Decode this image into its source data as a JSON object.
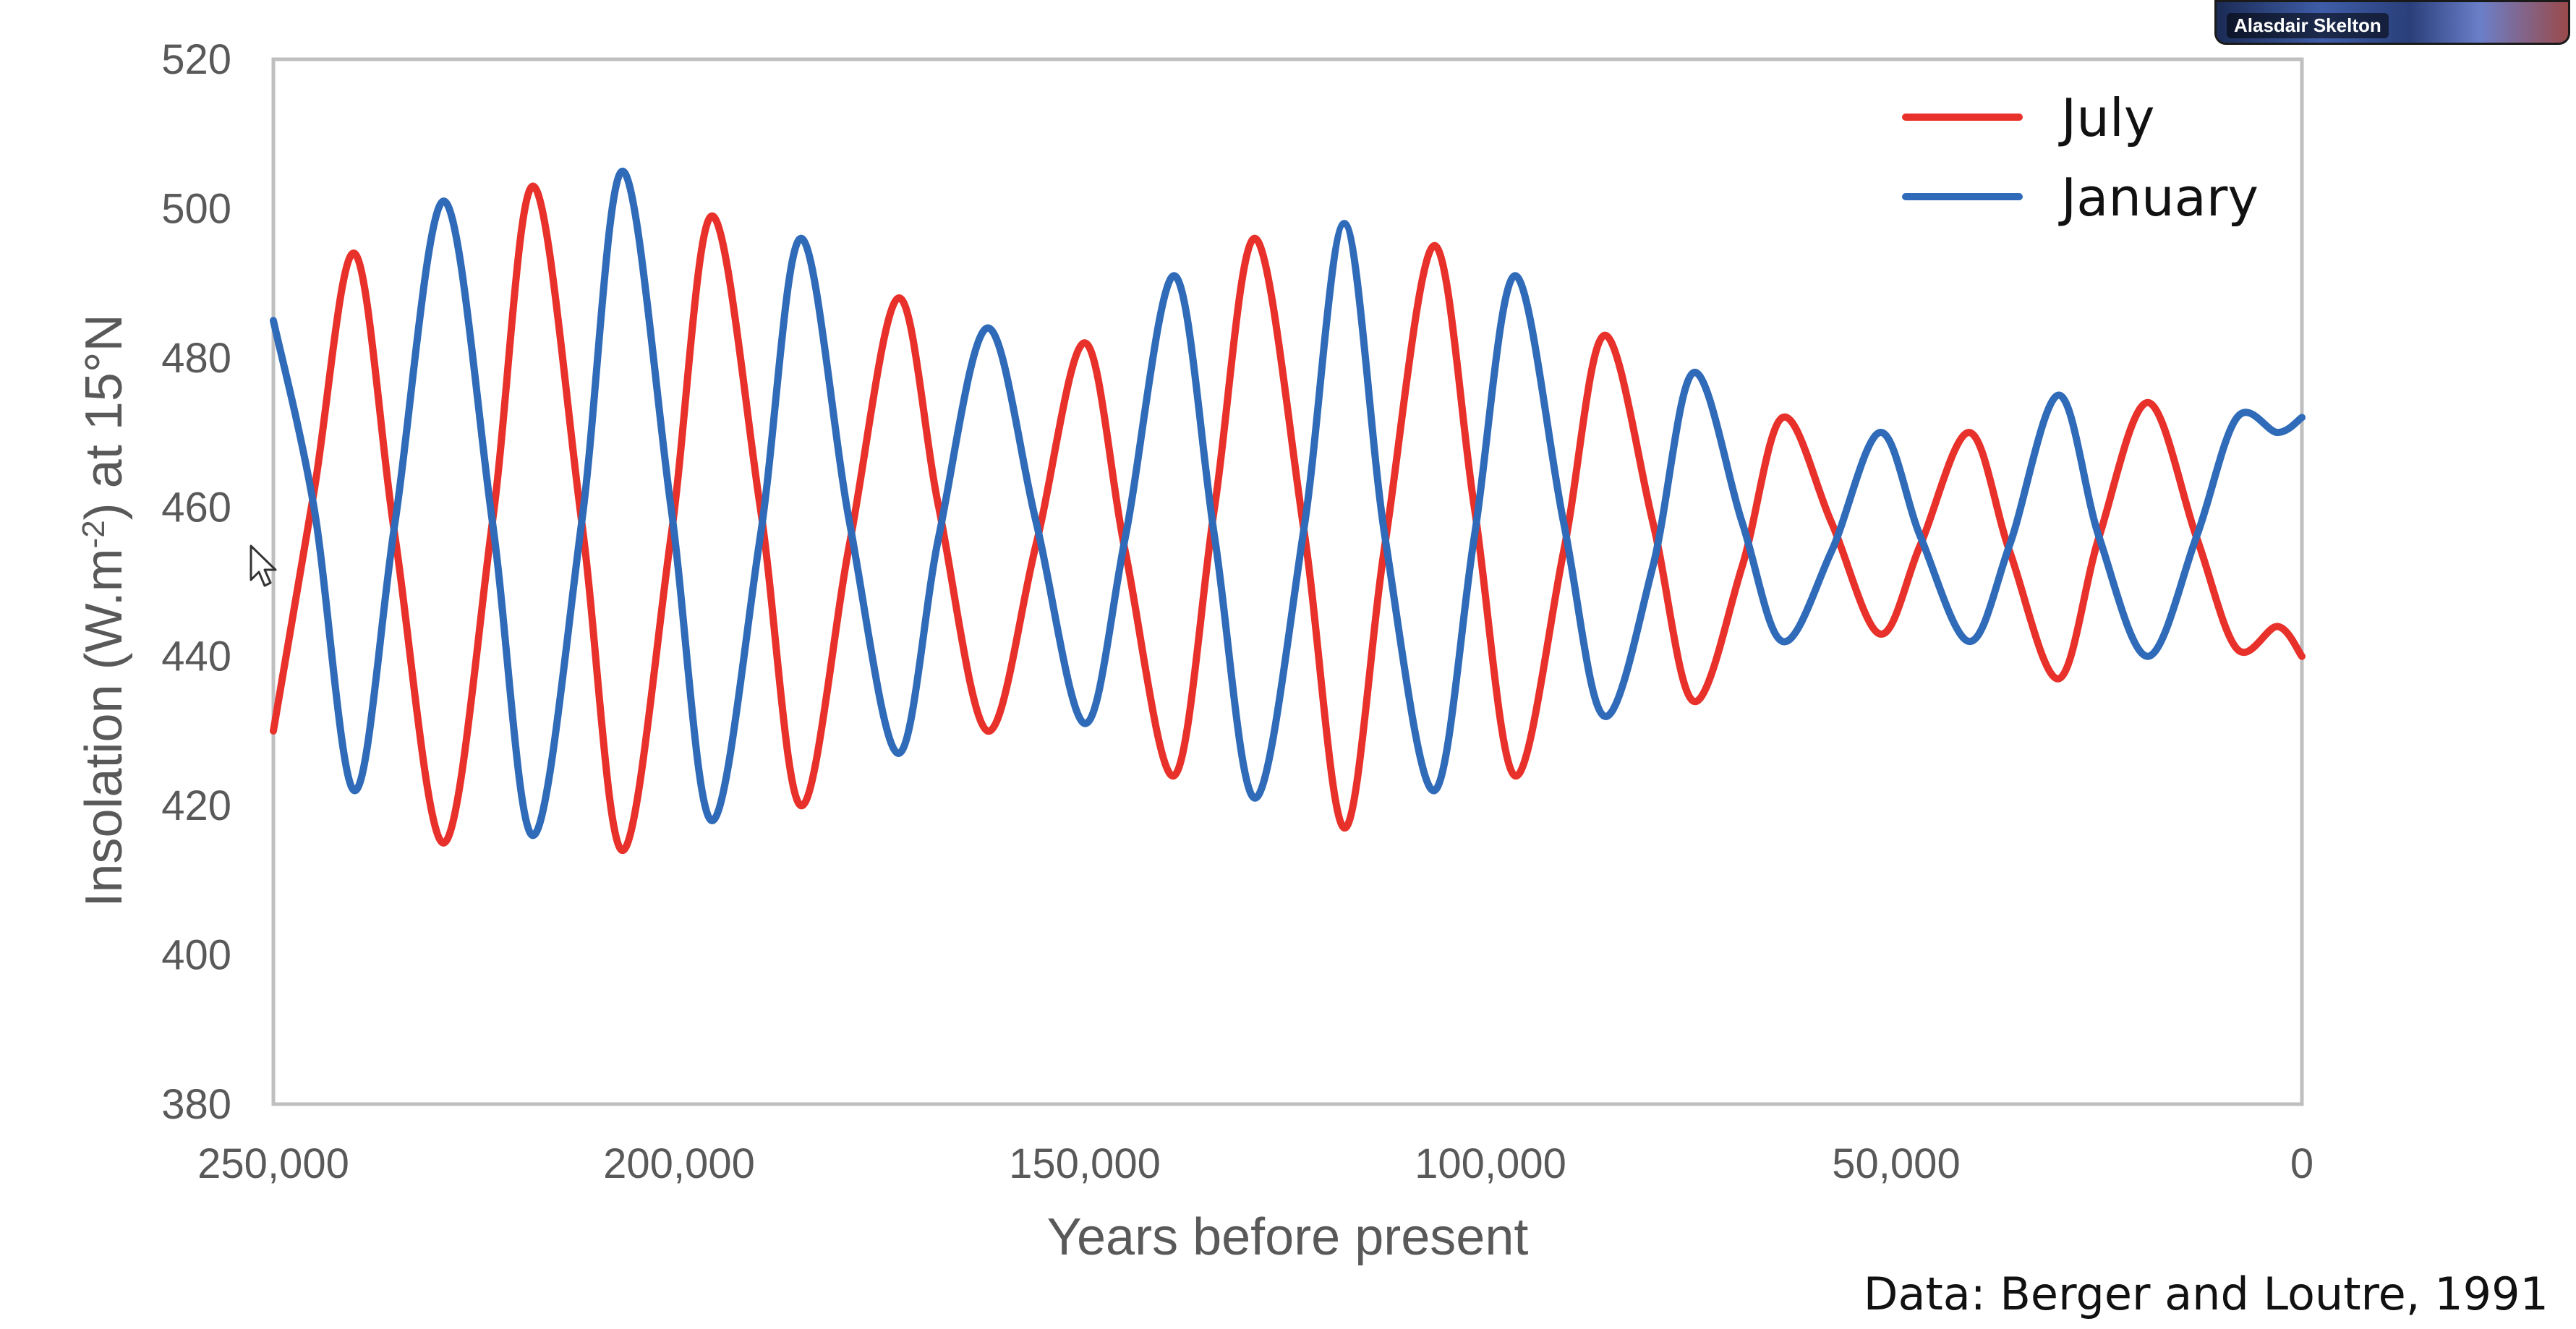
{
  "chart_data": {
    "type": "line",
    "xlabel": "Years before present",
    "ylabel_main": "Insolation (W.m",
    "ylabel_sup": "-2",
    "ylabel_tail": ") at 15°N",
    "xlim": [
      250000,
      0
    ],
    "ylim": [
      380,
      520
    ],
    "x_ticks": [
      250000,
      200000,
      150000,
      100000,
      50000,
      0
    ],
    "x_tick_labels": [
      "250,000",
      "200,000",
      "150,000",
      "100,000",
      "50,000",
      "0"
    ],
    "y_ticks": [
      380,
      400,
      420,
      440,
      460,
      480,
      500,
      520
    ],
    "y_tick_labels": [
      "380",
      "400",
      "420",
      "440",
      "460",
      "480",
      "500",
      "520"
    ],
    "grid": false,
    "legend_position": "top-right",
    "series": [
      {
        "name": "July",
        "color": "#e8312a",
        "x": [
          250000,
          245000,
          240000,
          235000,
          229000,
          223000,
          218000,
          212000,
          207000,
          201000,
          196000,
          190000,
          185000,
          179000,
          173000,
          168000,
          162000,
          156000,
          150000,
          145000,
          139000,
          134000,
          129000,
          123000,
          118000,
          113000,
          107000,
          102000,
          97000,
          91000,
          86000,
          80000,
          75000,
          69000,
          64000,
          58000,
          52000,
          47000,
          41000,
          36000,
          30000,
          25000,
          19000,
          13000,
          8000,
          3000,
          0
        ],
        "y": [
          430,
          462,
          494,
          456,
          415,
          458,
          503,
          458,
          414,
          456,
          499,
          460,
          420,
          455,
          488,
          460,
          430,
          455,
          482,
          454,
          424,
          460,
          496,
          457,
          417,
          455,
          495,
          460,
          424,
          454,
          483,
          458,
          434,
          452,
          472,
          458,
          443,
          455,
          470,
          454,
          437,
          456,
          474,
          456,
          441,
          444,
          440
        ]
      },
      {
        "name": "January",
        "color": "#2f6bb8",
        "x": [
          250000,
          245000,
          240000,
          235000,
          229000,
          223000,
          218000,
          212000,
          207000,
          201000,
          196000,
          190000,
          185000,
          179000,
          173000,
          168000,
          162000,
          156000,
          150000,
          145000,
          139000,
          134000,
          129000,
          123000,
          118000,
          113000,
          107000,
          102000,
          97000,
          91000,
          86000,
          80000,
          75000,
          69000,
          64000,
          58000,
          52000,
          47000,
          41000,
          36000,
          30000,
          25000,
          19000,
          13000,
          8000,
          3000,
          0
        ],
        "y": [
          485,
          460,
          422,
          458,
          501,
          458,
          416,
          458,
          505,
          460,
          418,
          456,
          496,
          458,
          427,
          456,
          484,
          458,
          431,
          456,
          491,
          456,
          421,
          457,
          498,
          456,
          422,
          456,
          491,
          458,
          432,
          452,
          478,
          458,
          442,
          454,
          470,
          456,
          442,
          455,
          475,
          456,
          440,
          456,
          472,
          470,
          472
        ]
      }
    ]
  },
  "source_note": "Data: Berger and Loutre, 1991",
  "video_tile": {
    "participant_name": "Alasdair Skelton"
  },
  "icons": {
    "cursor": "mouse-pointer-icon"
  }
}
